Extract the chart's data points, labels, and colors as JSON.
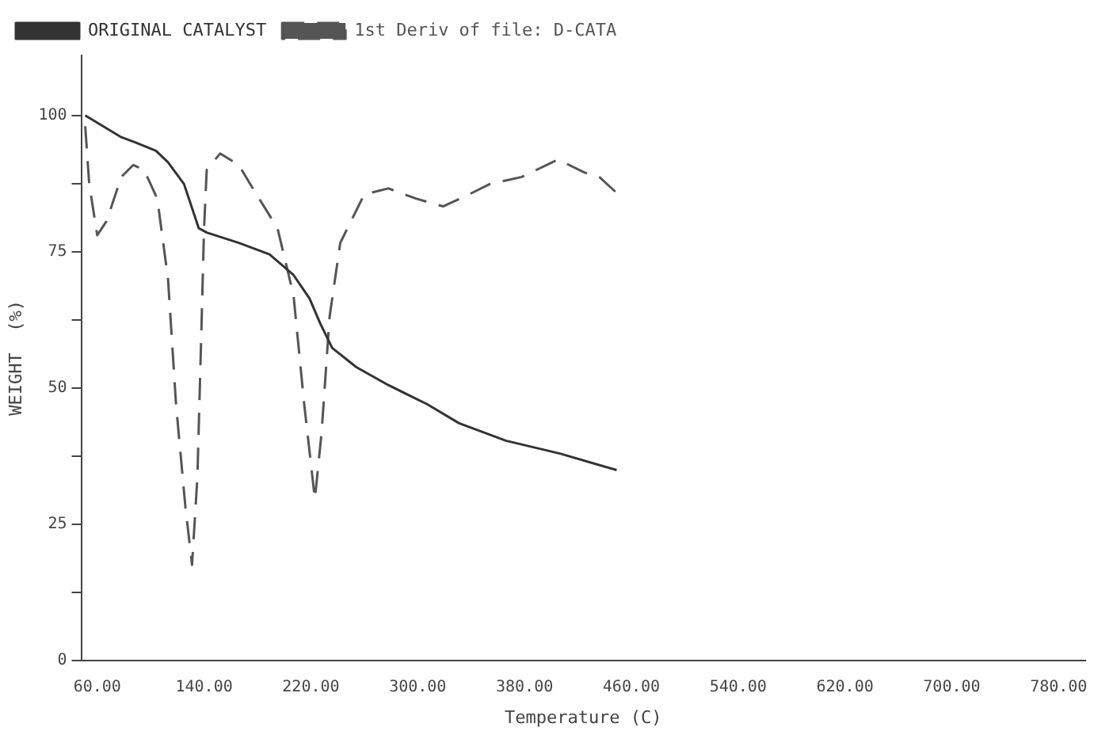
{
  "chart_data": {
    "type": "line",
    "xlabel": "Temperature (C)",
    "ylabel": "WEIGHT  (%)",
    "xlim": [
      48,
      800
    ],
    "xticks": [
      {
        "value": 60,
        "label": "60.00"
      },
      {
        "value": 140,
        "label": "140.00"
      },
      {
        "value": 220,
        "label": "220.00"
      },
      {
        "value": 300,
        "label": "300.00"
      },
      {
        "value": 380,
        "label": "380.00"
      },
      {
        "value": 460,
        "label": "460.00"
      },
      {
        "value": 540,
        "label": "540.00"
      },
      {
        "value": 620,
        "label": "620.00"
      },
      {
        "value": 700,
        "label": "700.00"
      },
      {
        "value": 780,
        "label": "780.00"
      }
    ],
    "ylim": [
      0,
      111
    ],
    "yticks": [
      0,
      {
        "value": 12.5,
        "label": null
      },
      25,
      {
        "value": 37.5,
        "label": null
      },
      50,
      {
        "value": 62.5,
        "label": null
      },
      75,
      {
        "value": 87.5,
        "label": null
      },
      100
    ],
    "grid": false,
    "legend": "top left",
    "marker": "none",
    "series": [
      {
        "name": "ORIGINAL CATALYST",
        "color": "#333333",
        "line_style": "solid",
        "x": [
          51,
          78,
          89,
          104,
          113,
          125,
          136,
          142,
          166,
          189,
          207,
          219,
          227,
          236,
          254,
          278,
          307,
          331,
          366,
          407,
          449
        ],
        "values": [
          100,
          96,
          95,
          93.5,
          91.4,
          87.4,
          79.3,
          78.5,
          76.6,
          74.5,
          70.7,
          66.4,
          61.8,
          57.3,
          53.8,
          50.5,
          47,
          43.5,
          40.3,
          37.9,
          34.9
        ]
      },
      {
        "name": "1st Deriv of file: D-CATA",
        "color": "#555555",
        "line_style": "dashed",
        "x": [
          51,
          54,
          60,
          67,
          78,
          87,
          95,
          105,
          113,
          119,
          126,
          131,
          135,
          138,
          140,
          142,
          152,
          166,
          178,
          195,
          207,
          215,
          223,
          228,
          234,
          242,
          260,
          278,
          299,
          319,
          336,
          354,
          378,
          405,
          425,
          436,
          448
        ],
        "values": [
          98,
          87.4,
          78,
          80.6,
          88.7,
          90.9,
          90,
          84.7,
          70,
          47,
          28.2,
          17.5,
          33.6,
          60.5,
          79.3,
          90,
          93,
          90.9,
          86,
          79.3,
          67,
          47,
          29.6,
          41.7,
          63,
          76.6,
          85.5,
          86.6,
          84.7,
          83.3,
          85.2,
          87.4,
          88.7,
          91.9,
          89.5,
          88.7,
          86
        ]
      }
    ]
  }
}
